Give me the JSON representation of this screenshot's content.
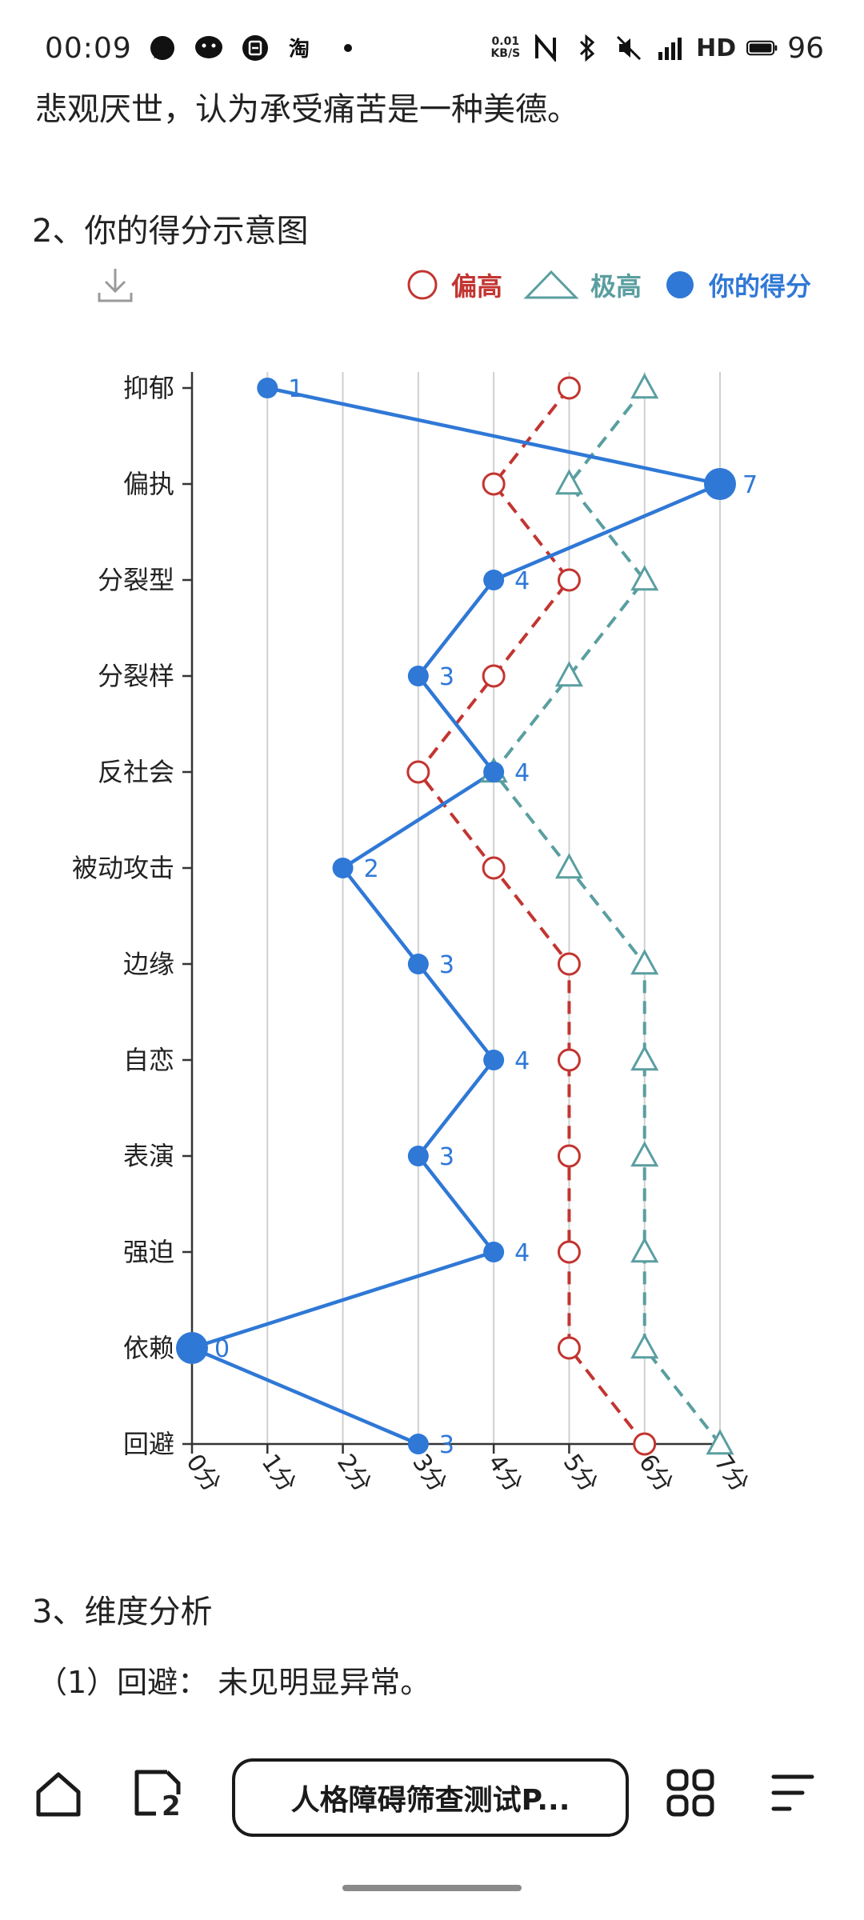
{
  "status_bar": {
    "time": "00:09",
    "notification_icons": [
      "chat-bubble-icon",
      "wechat-icon",
      "meituan-icon",
      "taobao-icon",
      "dot-icon"
    ],
    "net_speed_value": "0.01",
    "net_speed_unit": "KB/S",
    "network": "HD",
    "battery": "96"
  },
  "intro_text": "悲观厌世，认为承受痛苦是一种美德。",
  "section2_title": "2、你的得分示意图",
  "legend": [
    {
      "label": "偏高",
      "color": "#c23531",
      "marker": "circle"
    },
    {
      "label": "极高",
      "color": "#5a9ea0",
      "marker": "triangle"
    },
    {
      "label": "你的得分",
      "color": "#2f78d6",
      "marker": "filled-circle"
    }
  ],
  "chart_data": {
    "type": "line",
    "orientation": "horizontal",
    "categories": [
      "抑郁",
      "偏执",
      "分裂型",
      "分裂样",
      "反社会",
      "被动攻击",
      "边缘",
      "自恋",
      "表演",
      "强迫",
      "依赖",
      "回避"
    ],
    "x_ticks": [
      "0分",
      "1分",
      "2分",
      "3分",
      "4分",
      "5分",
      "6分",
      "7分"
    ],
    "xlim": [
      0,
      7
    ],
    "grid": true,
    "legend_position": "top-right",
    "series": [
      {
        "name": "偏高",
        "color": "#c23531",
        "style": "dashed",
        "marker": "circle",
        "values": [
          5,
          4,
          5,
          4,
          3,
          4,
          5,
          5,
          5,
          5,
          5,
          6
        ]
      },
      {
        "name": "极高",
        "color": "#5a9ea0",
        "style": "dashed",
        "marker": "triangle",
        "values": [
          6,
          5,
          6,
          5,
          4,
          5,
          6,
          6,
          6,
          6,
          6,
          7
        ]
      },
      {
        "name": "你的得分",
        "color": "#2f78d6",
        "style": "solid",
        "marker": "filled-circle",
        "values": [
          1,
          7,
          4,
          3,
          4,
          2,
          3,
          4,
          3,
          4,
          0,
          3
        ]
      }
    ]
  },
  "section3_title": "3、维度分析",
  "analysis_line": "（1）回避： 未见明显异常。",
  "bottom_bar": {
    "home_label": "home-icon",
    "tabs_count": "2",
    "doc_title": "人格障碍筛查测试P...",
    "apps_label": "apps-icon",
    "menu_label": "menu-icon"
  }
}
